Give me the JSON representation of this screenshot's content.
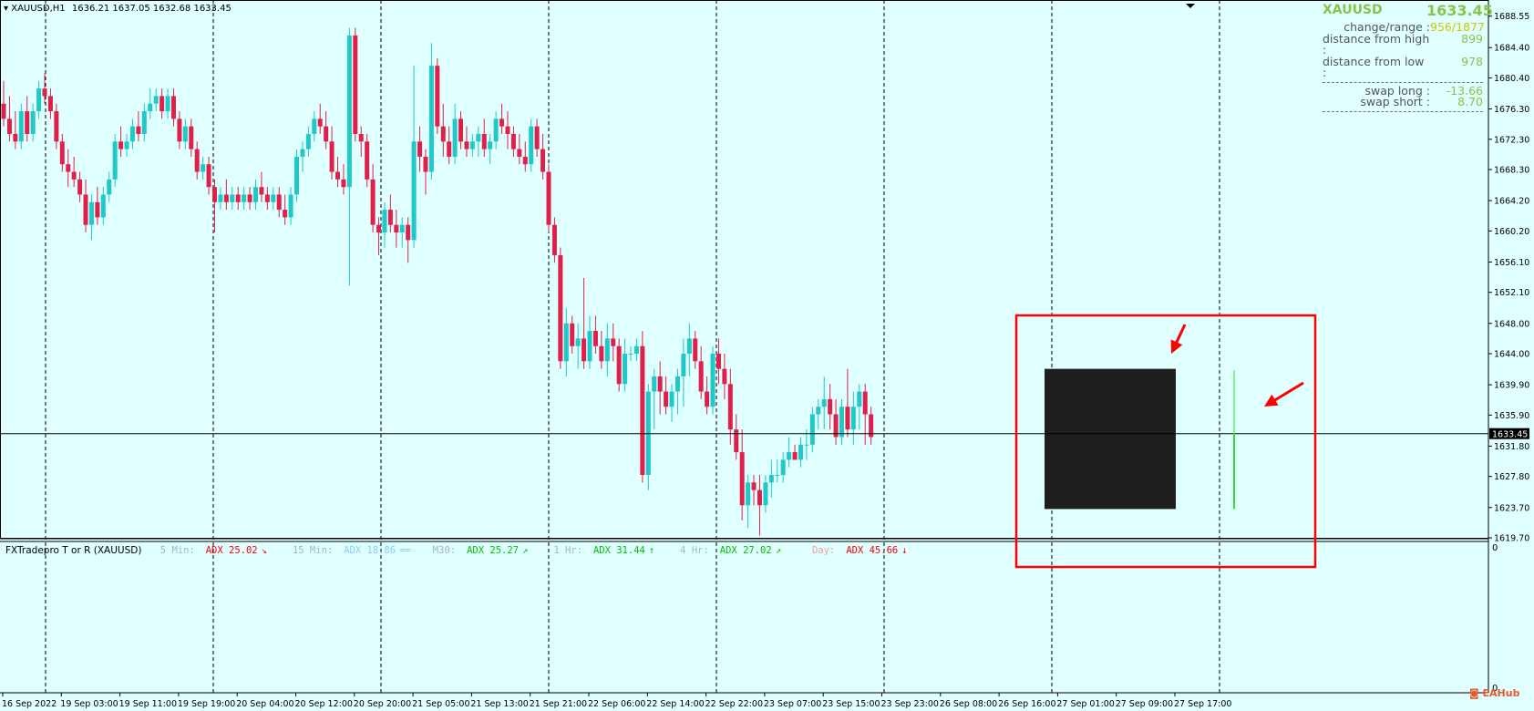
{
  "header": {
    "symbol_tf": "XAUUSD,H1",
    "ohlc": "1636.21 1637.05 1632.68 1633.45"
  },
  "info_panel": {
    "symbol": "XAUUSD",
    "price": "1633.45",
    "rows": [
      {
        "label": "change/range :",
        "value": "956/1877",
        "color": "#d4c400"
      },
      {
        "label": "distance from high :",
        "value": "899",
        "color": "#8bc34a"
      },
      {
        "label": "distance from low :",
        "value": "978",
        "color": "#8bc34a"
      },
      {
        "label": "swap long :",
        "value": "-13.66",
        "color": "#8bc34a"
      },
      {
        "label": "swap short :",
        "value": "8.70",
        "color": "#8bc34a"
      }
    ]
  },
  "indicator": {
    "title": "FXTradepro T or R (XAUUSD)",
    "items": [
      {
        "tf": "5 Min:",
        "adx": "ADX 25.02",
        "arrow": "↘",
        "color": "#ff0000",
        "tfcolor": "#9fb8c8"
      },
      {
        "tf": "15 Min:",
        "adx": "ADX 18.86",
        "arrow": "==",
        "color": "#87cefa",
        "tfcolor": "#9fb8c8"
      },
      {
        "tf": "M30:",
        "adx": "ADX 25.27",
        "arrow": "↗",
        "color": "#00c000",
        "tfcolor": "#9fb8c8"
      },
      {
        "tf": "1 Hr:",
        "adx": "ADX 31.44",
        "arrow": "↑",
        "color": "#00c000",
        "tfcolor": "#9fb8c8"
      },
      {
        "tf": "4 Hr:",
        "adx": "ADX 27.02",
        "arrow": "↗",
        "color": "#00c000",
        "tfcolor": "#9fb8c8"
      },
      {
        "tf": "Day:",
        "adx": "ADX 45.66",
        "arrow": "↓",
        "color": "#ff0000",
        "tfcolor": "#f0a0a0"
      }
    ],
    "axis_top": "0",
    "axis_bottom": "0"
  },
  "current_price_label": "1633.45",
  "logo": "EAHub",
  "colors": {
    "bull": "#20c8c8",
    "bear": "#e0204a",
    "background": "#e0ffff",
    "highlight": "#ff0000",
    "box": "#1e1e1e",
    "future_bar": "#33dd33"
  },
  "chart_data": {
    "type": "candlestick",
    "title": "",
    "ylim": [
      1619.7,
      1690.2
    ],
    "y_ticks": [
      "1688.55",
      "1684.40",
      "1680.40",
      "1676.30",
      "1672.30",
      "1668.30",
      "1664.20",
      "1660.20",
      "1656.10",
      "1652.10",
      "1648.00",
      "1644.00",
      "1639.90",
      "1635.90",
      "1631.80",
      "1627.80",
      "1623.70",
      "1619.70"
    ],
    "x_labels": [
      "16 Sep 2022",
      "19 Sep 03:00",
      "19 Sep 11:00",
      "19 Sep 19:00",
      "20 Sep 04:00",
      "20 Sep 12:00",
      "20 Sep 20:00",
      "21 Sep 05:00",
      "21 Sep 13:00",
      "21 Sep 21:00",
      "22 Sep 06:00",
      "22 Sep 14:00",
      "22 Sep 22:00",
      "23 Sep 07:00",
      "23 Sep 15:00",
      "23 Sep 23:00",
      "26 Sep 08:00",
      "26 Sep 16:00",
      "27 Sep 01:00",
      "27 Sep 09:00",
      "27 Sep 17:00"
    ],
    "candles": [
      [
        1677,
        1680,
        1674,
        1675
      ],
      [
        1675,
        1678,
        1672,
        1673
      ],
      [
        1673,
        1676,
        1671,
        1672
      ],
      [
        1672,
        1677,
        1671,
        1676
      ],
      [
        1676,
        1678,
        1672,
        1673
      ],
      [
        1673,
        1677,
        1672,
        1676
      ],
      [
        1676,
        1680,
        1675,
        1679
      ],
      [
        1679,
        1681,
        1677,
        1678
      ],
      [
        1678,
        1679,
        1675,
        1676
      ],
      [
        1676,
        1677,
        1671,
        1672
      ],
      [
        1672,
        1673,
        1668,
        1669
      ],
      [
        1669,
        1671,
        1666,
        1668
      ],
      [
        1668,
        1670,
        1666,
        1667
      ],
      [
        1667,
        1668,
        1664,
        1665
      ],
      [
        1665,
        1667,
        1660,
        1661
      ],
      [
        1661,
        1665,
        1659,
        1664
      ],
      [
        1664,
        1666,
        1661,
        1662
      ],
      [
        1662,
        1666,
        1661,
        1665
      ],
      [
        1665,
        1668,
        1664,
        1667
      ],
      [
        1667,
        1673,
        1666,
        1672
      ],
      [
        1672,
        1674,
        1670,
        1671
      ],
      [
        1671,
        1673,
        1670,
        1672
      ],
      [
        1672,
        1675,
        1671,
        1674
      ],
      [
        1674,
        1676,
        1672,
        1673
      ],
      [
        1673,
        1677,
        1672,
        1676
      ],
      [
        1676,
        1679,
        1675,
        1677
      ],
      [
        1677,
        1679,
        1676,
        1678
      ],
      [
        1678,
        1679,
        1675,
        1676
      ],
      [
        1676,
        1679,
        1675,
        1678
      ],
      [
        1678,
        1679,
        1674,
        1675
      ],
      [
        1675,
        1676,
        1671,
        1672
      ],
      [
        1672,
        1675,
        1671,
        1674
      ],
      [
        1674,
        1675,
        1670,
        1671
      ],
      [
        1671,
        1672,
        1667,
        1668
      ],
      [
        1668,
        1670,
        1667,
        1669
      ],
      [
        1669,
        1670,
        1665,
        1666
      ],
      [
        1666,
        1667,
        1660,
        1664
      ],
      [
        1664,
        1666,
        1663,
        1665
      ],
      [
        1665,
        1667,
        1663,
        1664
      ],
      [
        1664,
        1666,
        1663,
        1665
      ],
      [
        1665,
        1666,
        1663,
        1664
      ],
      [
        1664,
        1666,
        1663,
        1665
      ],
      [
        1665,
        1666,
        1663,
        1664
      ],
      [
        1664,
        1667,
        1663,
        1666
      ],
      [
        1666,
        1668,
        1664,
        1665
      ],
      [
        1665,
        1666,
        1663,
        1664
      ],
      [
        1664,
        1666,
        1663,
        1665
      ],
      [
        1665,
        1666,
        1662,
        1663
      ],
      [
        1663,
        1665,
        1661,
        1662
      ],
      [
        1662,
        1666,
        1661,
        1665
      ],
      [
        1665,
        1671,
        1664,
        1670
      ],
      [
        1670,
        1672,
        1668,
        1671
      ],
      [
        1671,
        1674,
        1670,
        1673
      ],
      [
        1673,
        1676,
        1672,
        1675
      ],
      [
        1675,
        1677,
        1673,
        1674
      ],
      [
        1674,
        1676,
        1671,
        1672
      ],
      [
        1672,
        1674,
        1667,
        1668
      ],
      [
        1668,
        1670,
        1666,
        1667
      ],
      [
        1667,
        1669,
        1665,
        1666
      ],
      [
        1666,
        1687,
        1653,
        1686
      ],
      [
        1686,
        1687,
        1672,
        1673
      ],
      [
        1673,
        1674,
        1670,
        1672
      ],
      [
        1672,
        1673,
        1666,
        1667
      ],
      [
        1667,
        1669,
        1660,
        1661
      ],
      [
        1661,
        1662,
        1657,
        1660
      ],
      [
        1660,
        1664,
        1658,
        1663
      ],
      [
        1663,
        1665,
        1660,
        1661
      ],
      [
        1661,
        1663,
        1658,
        1660
      ],
      [
        1660,
        1662,
        1658,
        1661
      ],
      [
        1661,
        1662,
        1656,
        1659
      ],
      [
        1659,
        1682,
        1658,
        1672
      ],
      [
        1672,
        1674,
        1668,
        1670
      ],
      [
        1670,
        1671,
        1665,
        1668
      ],
      [
        1668,
        1685,
        1667,
        1682
      ],
      [
        1682,
        1683,
        1673,
        1674
      ],
      [
        1674,
        1677,
        1670,
        1672
      ],
      [
        1672,
        1674,
        1669,
        1670
      ],
      [
        1670,
        1677,
        1669,
        1675
      ],
      [
        1675,
        1676,
        1671,
        1672
      ],
      [
        1672,
        1674,
        1670,
        1671
      ],
      [
        1671,
        1673,
        1670,
        1672
      ],
      [
        1672,
        1674,
        1670,
        1673
      ],
      [
        1673,
        1675,
        1670,
        1671
      ],
      [
        1671,
        1673,
        1669,
        1672
      ],
      [
        1672,
        1676,
        1671,
        1675
      ],
      [
        1675,
        1677,
        1673,
        1674
      ],
      [
        1674,
        1676,
        1671,
        1673
      ],
      [
        1673,
        1674,
        1670,
        1671
      ],
      [
        1671,
        1673,
        1669,
        1670
      ],
      [
        1670,
        1672,
        1668,
        1669
      ],
      [
        1669,
        1675,
        1668,
        1674
      ],
      [
        1674,
        1675,
        1670,
        1671
      ],
      [
        1671,
        1673,
        1667,
        1668
      ],
      [
        1668,
        1669,
        1660,
        1661
      ],
      [
        1661,
        1662,
        1656,
        1657
      ],
      [
        1657,
        1658,
        1642,
        1643
      ],
      [
        1643,
        1650,
        1641,
        1648
      ],
      [
        1648,
        1649,
        1644,
        1645
      ],
      [
        1645,
        1648,
        1642,
        1646
      ],
      [
        1646,
        1654,
        1642,
        1643
      ],
      [
        1643,
        1649,
        1642,
        1647
      ],
      [
        1647,
        1649,
        1644,
        1645
      ],
      [
        1645,
        1647,
        1642,
        1643
      ],
      [
        1643,
        1648,
        1641,
        1646
      ],
      [
        1646,
        1648,
        1643,
        1645
      ],
      [
        1645,
        1646,
        1639,
        1640
      ],
      [
        1640,
        1646,
        1639,
        1644
      ],
      [
        1644,
        1645,
        1643,
        1644
      ],
      [
        1644,
        1646,
        1643,
        1645
      ],
      [
        1645,
        1647,
        1627,
        1628
      ],
      [
        1628,
        1640,
        1626,
        1639
      ],
      [
        1639,
        1642,
        1634,
        1641
      ],
      [
        1641,
        1643,
        1636,
        1639
      ],
      [
        1639,
        1641,
        1636,
        1637
      ],
      [
        1637,
        1640,
        1635,
        1639
      ],
      [
        1639,
        1642,
        1636,
        1641
      ],
      [
        1641,
        1646,
        1637,
        1644
      ],
      [
        1644,
        1648,
        1641,
        1646
      ],
      [
        1646,
        1647,
        1642,
        1643
      ],
      [
        1643,
        1645,
        1638,
        1639
      ],
      [
        1639,
        1641,
        1636,
        1637
      ],
      [
        1637,
        1645,
        1636,
        1644
      ],
      [
        1644,
        1646,
        1640,
        1642
      ],
      [
        1642,
        1644,
        1638,
        1640
      ],
      [
        1640,
        1642,
        1632,
        1634
      ],
      [
        1634,
        1636,
        1630,
        1631
      ],
      [
        1631,
        1634,
        1622,
        1624
      ],
      [
        1624,
        1628,
        1621,
        1627
      ],
      [
        1627,
        1628,
        1624,
        1626
      ],
      [
        1626,
        1628,
        1620,
        1624
      ],
      [
        1624,
        1628,
        1623,
        1627
      ],
      [
        1627,
        1630,
        1625,
        1628
      ],
      [
        1628,
        1630,
        1627,
        1628
      ],
      [
        1628,
        1631,
        1627,
        1630
      ],
      [
        1630,
        1633,
        1629,
        1631
      ],
      [
        1631,
        1632,
        1630,
        1630
      ],
      [
        1630,
        1633,
        1629,
        1632
      ],
      [
        1632,
        1634,
        1630,
        1632
      ],
      [
        1632,
        1637,
        1631,
        1636
      ],
      [
        1636,
        1638,
        1634,
        1637
      ],
      [
        1637,
        1641,
        1634,
        1638
      ],
      [
        1638,
        1640,
        1634,
        1636
      ],
      [
        1636,
        1638,
        1632,
        1633
      ],
      [
        1633,
        1638,
        1632,
        1637
      ],
      [
        1637,
        1642,
        1633,
        1634
      ],
      [
        1634,
        1639,
        1632,
        1637
      ],
      [
        1637,
        1640,
        1634,
        1639
      ],
      [
        1639,
        1640,
        1632,
        1636
      ],
      [
        1636,
        1637,
        1632,
        1633
      ]
    ],
    "future_bar": [
      1641.8,
      1623.5
    ]
  }
}
